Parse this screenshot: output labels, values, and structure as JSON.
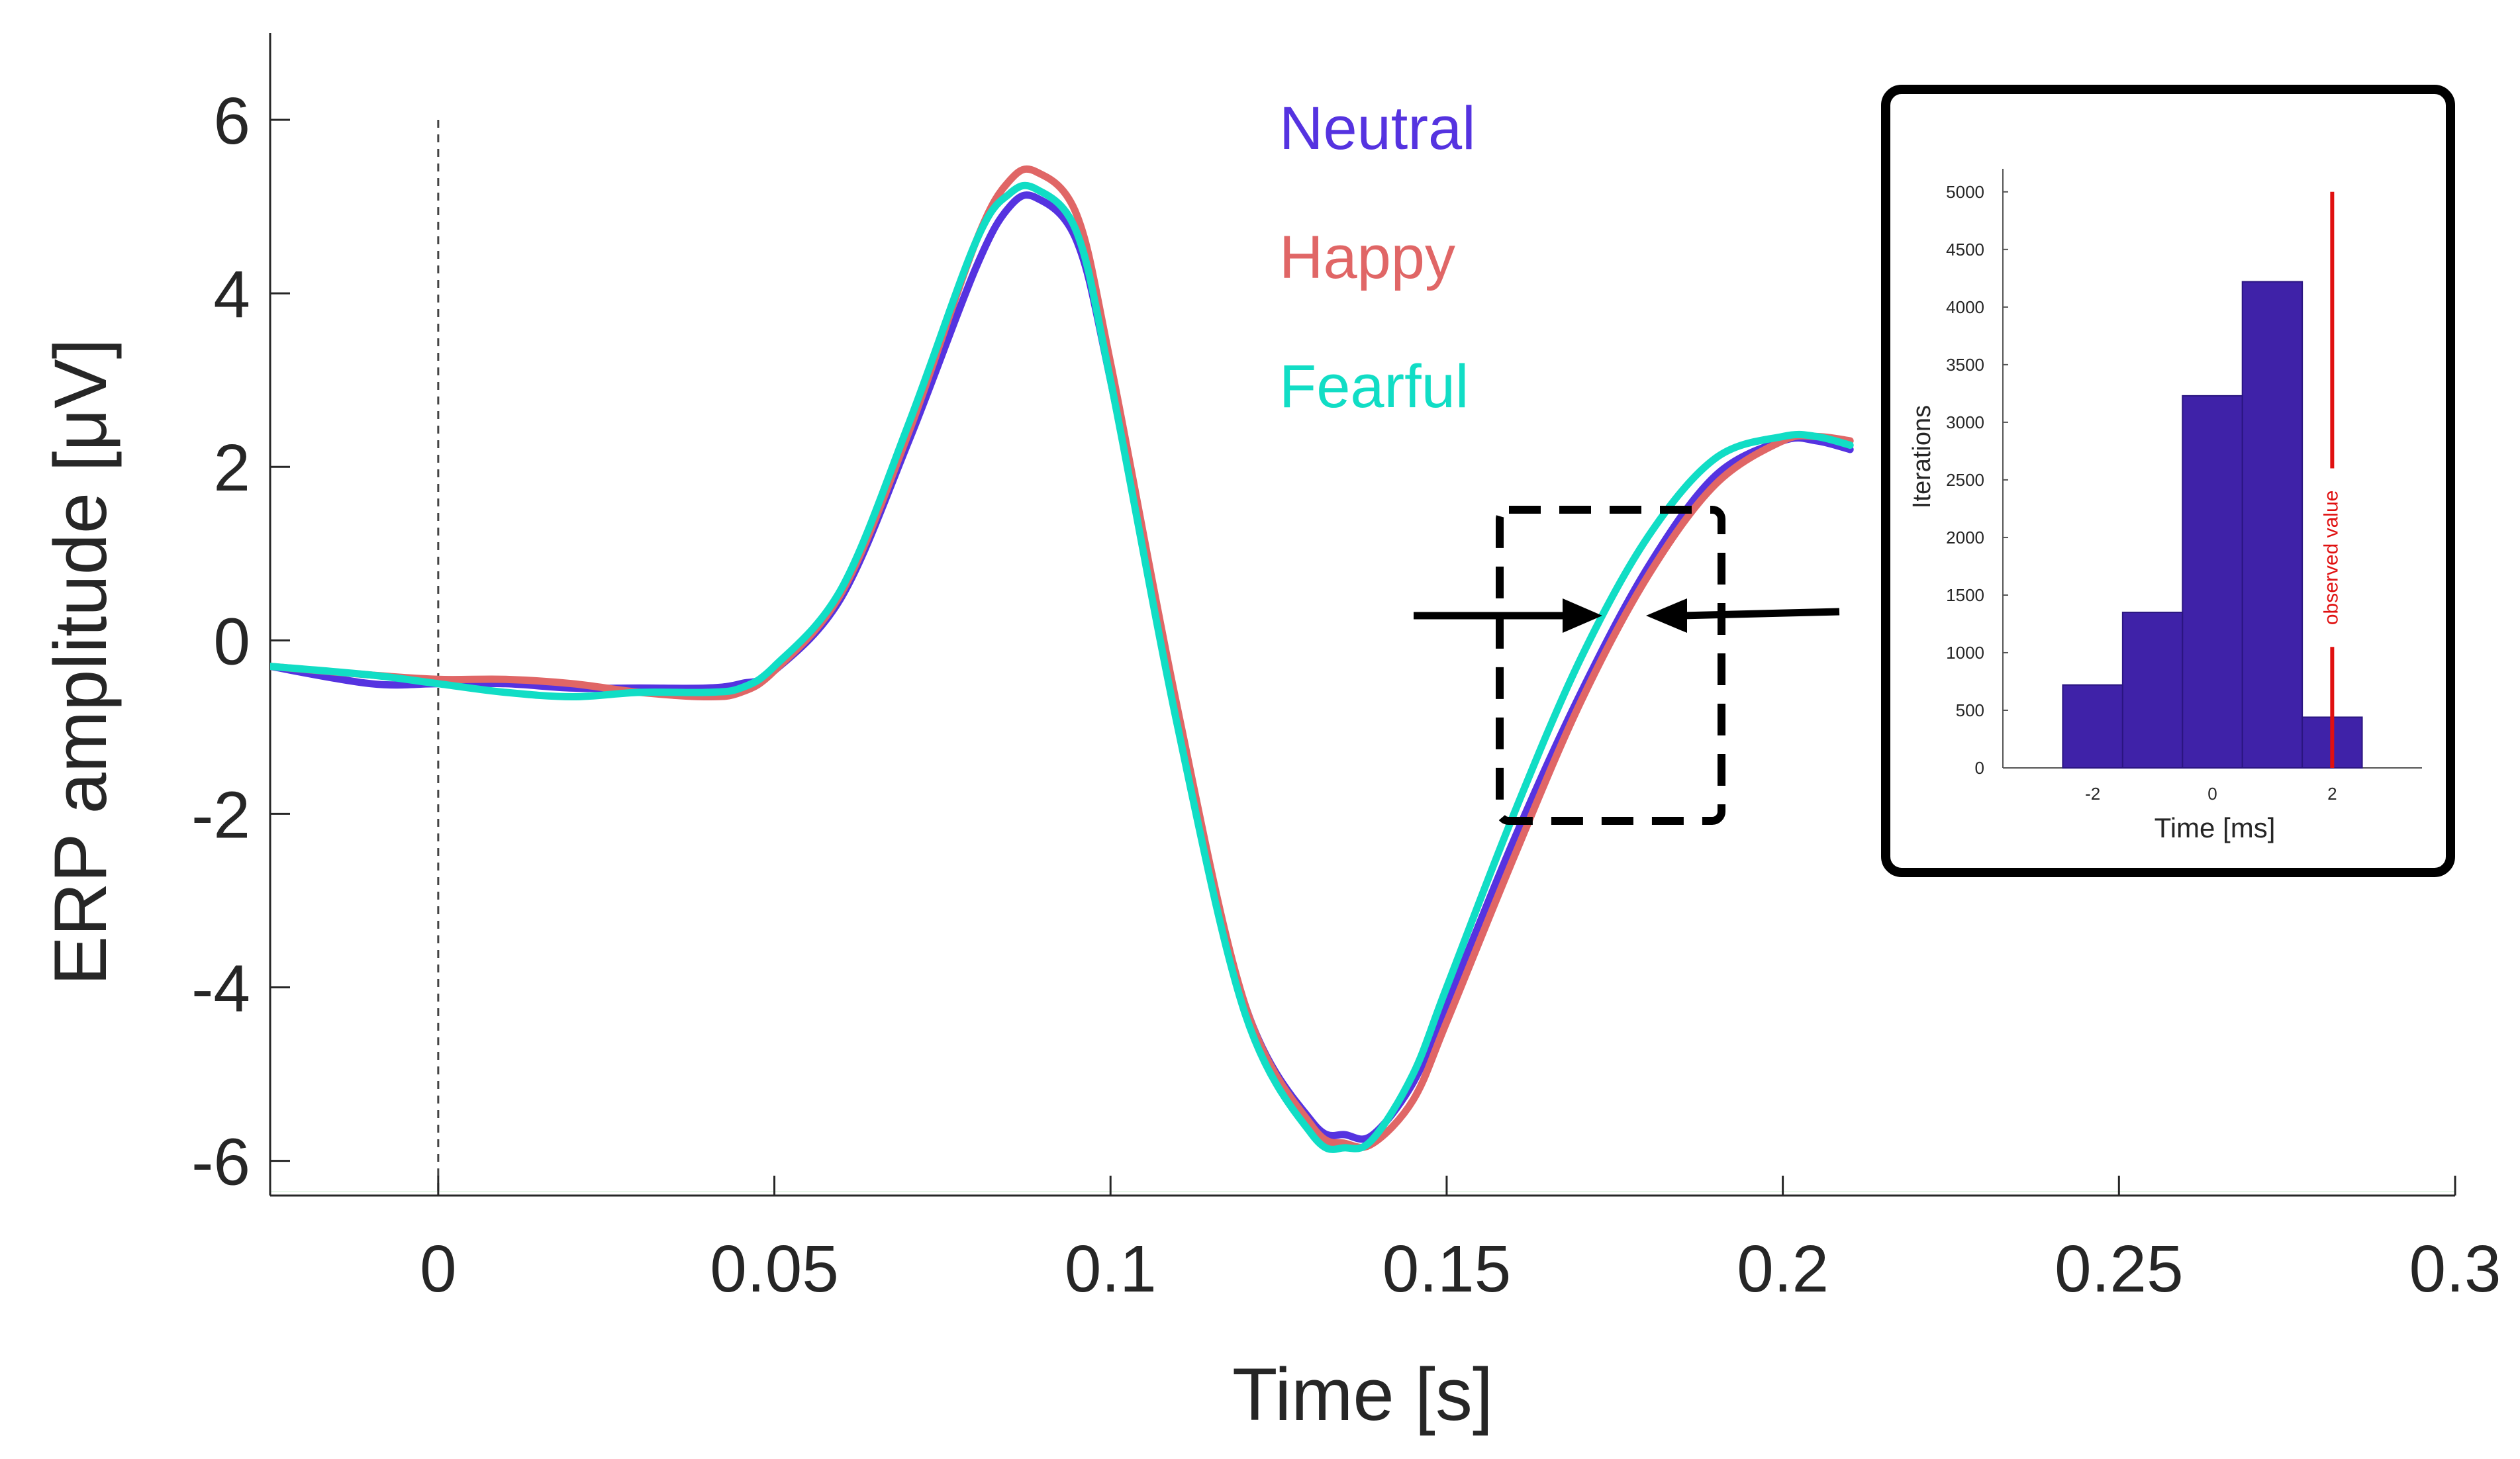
{
  "chart_data": [
    {
      "type": "line",
      "xlabel": "Time [s]",
      "ylabel": "ERP amplitude [μV]",
      "xlim": [
        -0.025,
        0.3
      ],
      "ylim": [
        -6.4,
        7
      ],
      "x_ticks": [
        0,
        0.05,
        0.1,
        0.15,
        0.2,
        0.25,
        0.3
      ],
      "x_tick_labels": [
        "0",
        "0.05",
        "0.1",
        "0.15",
        "0.2",
        "0.25",
        "0.3"
      ],
      "y_ticks": [
        -6,
        -4,
        -2,
        0,
        2,
        4,
        6
      ],
      "y_tick_labels": [
        "-6",
        "-4",
        "-2",
        "0",
        "2",
        "4",
        "6"
      ],
      "stimulus_onset_line": 0,
      "legend": {
        "placement": "top-center",
        "entries": [
          "Neutral",
          "Happy",
          "Fearful"
        ]
      },
      "series": [
        {
          "name": "Neutral",
          "color": "#5533e0",
          "x": [
            -0.025,
            -0.01,
            0,
            0.01,
            0.02,
            0.03,
            0.04,
            0.045,
            0.05,
            0.06,
            0.07,
            0.08,
            0.085,
            0.089,
            0.095,
            0.1,
            0.11,
            0.12,
            0.13,
            0.135,
            0.139,
            0.145,
            0.15,
            0.16,
            0.17,
            0.18,
            0.19,
            0.2,
            0.205,
            0.21
          ],
          "y": [
            -0.3,
            -0.5,
            -0.5,
            -0.5,
            -0.55,
            -0.55,
            -0.55,
            -0.5,
            -0.35,
            0.5,
            2.3,
            4.3,
            5.0,
            5.1,
            4.6,
            3.0,
            -0.9,
            -4.2,
            -5.55,
            -5.7,
            -5.7,
            -5.1,
            -4.2,
            -2.3,
            -0.6,
            0.85,
            1.9,
            2.3,
            2.3,
            2.2
          ]
        },
        {
          "name": "Happy",
          "color": "#e06666",
          "x": [
            -0.025,
            -0.01,
            0,
            0.01,
            0.02,
            0.03,
            0.04,
            0.045,
            0.05,
            0.06,
            0.07,
            0.08,
            0.085,
            0.089,
            0.095,
            0.1,
            0.11,
            0.12,
            0.13,
            0.135,
            0.139,
            0.145,
            0.15,
            0.16,
            0.17,
            0.18,
            0.19,
            0.2,
            0.205,
            0.21
          ],
          "y": [
            -0.3,
            -0.4,
            -0.45,
            -0.45,
            -0.5,
            -0.6,
            -0.65,
            -0.6,
            -0.35,
            0.55,
            2.4,
            4.6,
            5.3,
            5.4,
            4.9,
            3.2,
            -0.8,
            -4.2,
            -5.6,
            -5.8,
            -5.8,
            -5.3,
            -4.4,
            -2.5,
            -0.7,
            0.75,
            1.8,
            2.3,
            2.35,
            2.3
          ]
        },
        {
          "name": "Fearful",
          "color": "#11ddc5",
          "x": [
            -0.025,
            -0.01,
            0,
            0.01,
            0.02,
            0.03,
            0.04,
            0.045,
            0.05,
            0.06,
            0.07,
            0.08,
            0.085,
            0.089,
            0.095,
            0.1,
            0.11,
            0.12,
            0.13,
            0.135,
            0.139,
            0.145,
            0.15,
            0.16,
            0.17,
            0.18,
            0.19,
            0.2,
            0.205,
            0.21
          ],
          "y": [
            -0.3,
            -0.4,
            -0.5,
            -0.6,
            -0.65,
            -0.6,
            -0.6,
            -0.55,
            -0.3,
            0.6,
            2.5,
            4.6,
            5.15,
            5.2,
            4.7,
            3.0,
            -1.0,
            -4.3,
            -5.7,
            -5.85,
            -5.75,
            -5.0,
            -4.0,
            -2.0,
            -0.2,
            1.2,
            2.1,
            2.35,
            2.35,
            2.25
          ]
        }
      ],
      "annotations": [
        "dashed rectangle around the curves near 0.16–0.19 s",
        "two arrows pointing at the latency difference"
      ]
    },
    {
      "type": "histogram",
      "xlabel": "Time [ms]",
      "ylabel": "Iterations",
      "xlim": [
        -3.5,
        3.5
      ],
      "ylim": [
        0,
        5200
      ],
      "x_ticks": [
        -2,
        0,
        2
      ],
      "x_tick_labels": [
        "-2",
        "0",
        "2"
      ],
      "y_ticks": [
        0,
        500,
        1000,
        1500,
        2000,
        2500,
        3000,
        3500,
        4000,
        4500,
        5000
      ],
      "y_tick_labels": [
        "0",
        "500",
        "1000",
        "1500",
        "2000",
        "2500",
        "3000",
        "3500",
        "4000",
        "4500",
        "5000"
      ],
      "bar_color": "#3f22a8",
      "bins": [
        {
          "start": -2.5,
          "end": -1.5,
          "value": 720
        },
        {
          "start": -1.5,
          "end": -0.5,
          "value": 1350
        },
        {
          "start": -0.5,
          "end": 0.5,
          "value": 3230
        },
        {
          "start": 0.5,
          "end": 1.5,
          "value": 4220
        },
        {
          "start": 1.5,
          "end": 2.5,
          "value": 440
        }
      ],
      "observed_value": 2,
      "observed_label": "observed value",
      "observed_color": "#e01010"
    }
  ]
}
